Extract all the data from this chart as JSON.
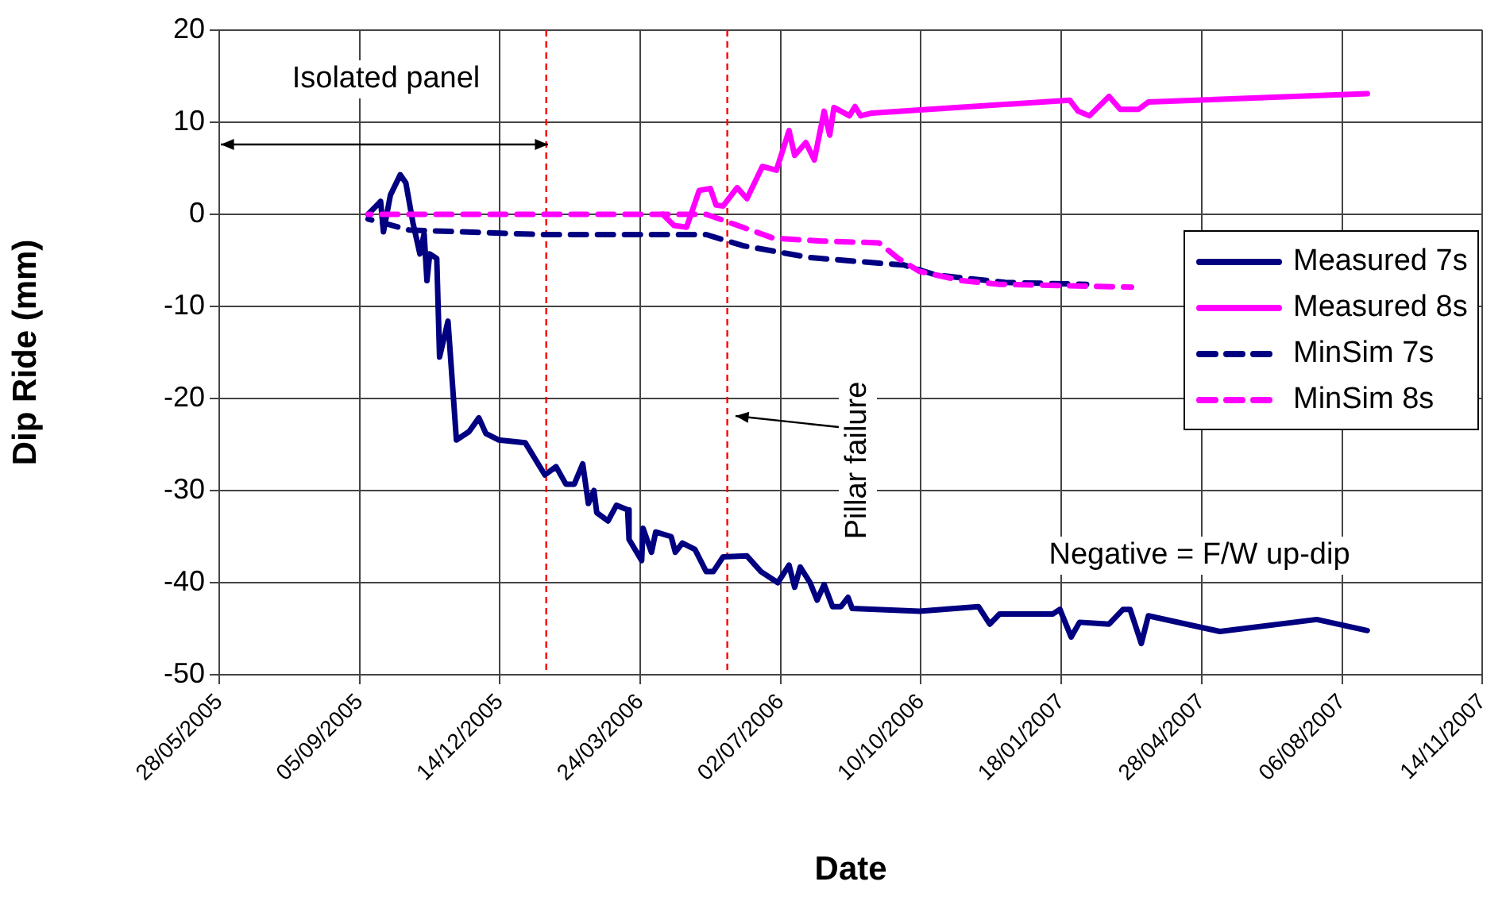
{
  "chart_data": {
    "type": "line",
    "xlabel": "Date",
    "ylabel": "Dip Ride (mm)",
    "xlim": [
      "2005-05-28",
      "2007-11-14"
    ],
    "xticks": [
      {
        "value": "2005-05-28",
        "label": "28/05/2005"
      },
      {
        "value": "2005-09-05",
        "label": "05/09/2005"
      },
      {
        "value": "2005-12-14",
        "label": "14/12/2005"
      },
      {
        "value": "2006-03-24",
        "label": "24/03/2006"
      },
      {
        "value": "2006-07-02",
        "label": "02/07/2006"
      },
      {
        "value": "2006-10-10",
        "label": "10/10/2006"
      },
      {
        "value": "2007-01-18",
        "label": "18/01/2007"
      },
      {
        "value": "2007-04-28",
        "label": "28/04/2007"
      },
      {
        "value": "2007-08-06",
        "label": "06/08/2007"
      },
      {
        "value": "2007-11-14",
        "label": "14/11/2007"
      }
    ],
    "ylim": [
      -50,
      20
    ],
    "yticks": [
      -50,
      -40,
      -30,
      -20,
      -10,
      0,
      10,
      20
    ],
    "grid": true,
    "legend": "right",
    "marker": "none",
    "series": [
      {
        "name": "Measured 7s",
        "color": "#000080",
        "line_style": "solid",
        "x": [
          "2005-09-11",
          "2005-09-20",
          "2005-09-22",
          "2005-09-27",
          "2005-10-04",
          "2005-10-08",
          "2005-10-13",
          "2005-10-18",
          "2005-10-21",
          "2005-10-23",
          "2005-10-25",
          "2005-10-30",
          "2005-11-01",
          "2005-11-07",
          "2005-11-13",
          "2005-11-22",
          "2005-11-29",
          "2005-12-04",
          "2005-12-13",
          "2006-01-01",
          "2006-01-15",
          "2006-01-23",
          "2006-01-30",
          "2006-02-05",
          "2006-02-11",
          "2006-02-15",
          "2006-02-19",
          "2006-02-21",
          "2006-03-01",
          "2006-03-07",
          "2006-03-15",
          "2006-03-16",
          "2006-03-25",
          "2006-03-26",
          "2006-04-01",
          "2006-04-04",
          "2006-04-15",
          "2006-04-18",
          "2006-04-23",
          "2006-05-02",
          "2006-05-10",
          "2006-05-15",
          "2006-05-22",
          "2006-06-08",
          "2006-06-18",
          "2006-06-30",
          "2006-07-08",
          "2006-07-12",
          "2006-07-16",
          "2006-07-23",
          "2006-07-28",
          "2006-08-02",
          "2006-08-08",
          "2006-08-14",
          "2006-08-19",
          "2006-08-22",
          "2006-10-09",
          "2006-11-20",
          "2006-11-28",
          "2006-12-05",
          "2007-01-12",
          "2007-01-17",
          "2007-01-25",
          "2007-01-31",
          "2007-02-21",
          "2007-03-03",
          "2007-03-08",
          "2007-03-16",
          "2007-03-21",
          "2007-05-11",
          "2007-07-19",
          "2007-08-24"
        ],
        "values": [
          0,
          1.4,
          -1.9,
          2.1,
          4.3,
          3.4,
          -0.9,
          -4.3,
          -2.1,
          -7.2,
          -4.3,
          -4.8,
          -15.5,
          -11.6,
          -24.5,
          -23.6,
          -22.1,
          -23.8,
          -24.5,
          -24.8,
          -28.3,
          -27.4,
          -29.3,
          -29.3,
          -27.1,
          -31.4,
          -30,
          -32.4,
          -33.3,
          -31.6,
          -32.1,
          -35.3,
          -37.6,
          -34.1,
          -36.7,
          -34.5,
          -35,
          -36.7,
          -35.7,
          -36.4,
          -38.8,
          -38.8,
          -37.2,
          -37.1,
          -38.8,
          -40,
          -38.1,
          -40.5,
          -38.3,
          -40,
          -41.9,
          -40.2,
          -42.6,
          -42.6,
          -41.6,
          -42.8,
          -43.1,
          -42.6,
          -44.5,
          -43.4,
          -43.4,
          -42.9,
          -45.9,
          -44.3,
          -44.5,
          -42.9,
          -42.9,
          -46.6,
          -43.6,
          -45.3,
          -44,
          -45.2
        ]
      },
      {
        "name": "Measured 8s",
        "color": "#ff00ff",
        "line_style": "solid",
        "x": [
          "2006-04-09",
          "2006-04-17",
          "2006-04-26",
          "2006-05-05",
          "2006-05-13",
          "2006-05-17",
          "2006-05-22",
          "2006-06-01",
          "2006-06-08",
          "2006-06-19",
          "2006-06-29",
          "2006-07-08",
          "2006-07-12",
          "2006-07-20",
          "2006-07-26",
          "2006-08-02",
          "2006-08-06",
          "2006-08-09",
          "2006-08-20",
          "2006-08-24",
          "2006-08-28",
          "2006-09-05",
          "2007-01-24",
          "2007-01-30",
          "2007-02-07",
          "2007-02-21",
          "2007-03-01",
          "2007-03-14",
          "2007-03-21",
          "2007-08-24"
        ],
        "values": [
          0,
          -1.2,
          -1.4,
          2.6,
          2.8,
          1,
          0.9,
          2.9,
          1.7,
          5.2,
          4.8,
          9.1,
          6.4,
          7.8,
          5.9,
          11.2,
          8.6,
          11.6,
          10.7,
          11.7,
          10.7,
          11,
          12.4,
          11.2,
          10.7,
          12.8,
          11.4,
          11.4,
          12.2,
          13.1
        ]
      },
      {
        "name": "MinSim 7s",
        "color": "#000080",
        "line_style": "dashed",
        "x": [
          "2005-09-11",
          "2005-10-10",
          "2006-01-13",
          "2006-05-10",
          "2006-06-05",
          "2006-07-23",
          "2006-09-10",
          "2006-09-28",
          "2006-10-21",
          "2006-12-09",
          "2007-02-05"
        ],
        "values": [
          -0.5,
          -1.7,
          -2.2,
          -2.2,
          -3.4,
          -4.7,
          -5.3,
          -5.5,
          -6.6,
          -7.4,
          -7.6
        ]
      },
      {
        "name": "MinSim 8s",
        "color": "#ff00ff",
        "line_style": "dashed",
        "x": [
          "2005-09-11",
          "2006-05-10",
          "2006-06-05",
          "2006-06-27",
          "2006-07-31",
          "2006-09-10",
          "2006-09-24",
          "2006-10-09",
          "2006-11-08",
          "2006-12-05",
          "2007-03-09"
        ],
        "values": [
          0,
          0,
          -1.4,
          -2.6,
          -2.9,
          -3.1,
          -4.8,
          -6.2,
          -7.2,
          -7.6,
          -7.9
        ]
      }
    ],
    "ref_lines": [
      {
        "axis": "x",
        "value": "2006-01-16",
        "color": "#ff0000",
        "line_style": "dashed"
      },
      {
        "axis": "x",
        "value": "2006-05-25",
        "color": "#ff0000",
        "line_style": "dashed"
      }
    ],
    "annotations": [
      "Isolated panel",
      "Pillar failure",
      "Negative = F/W up-dip"
    ]
  }
}
